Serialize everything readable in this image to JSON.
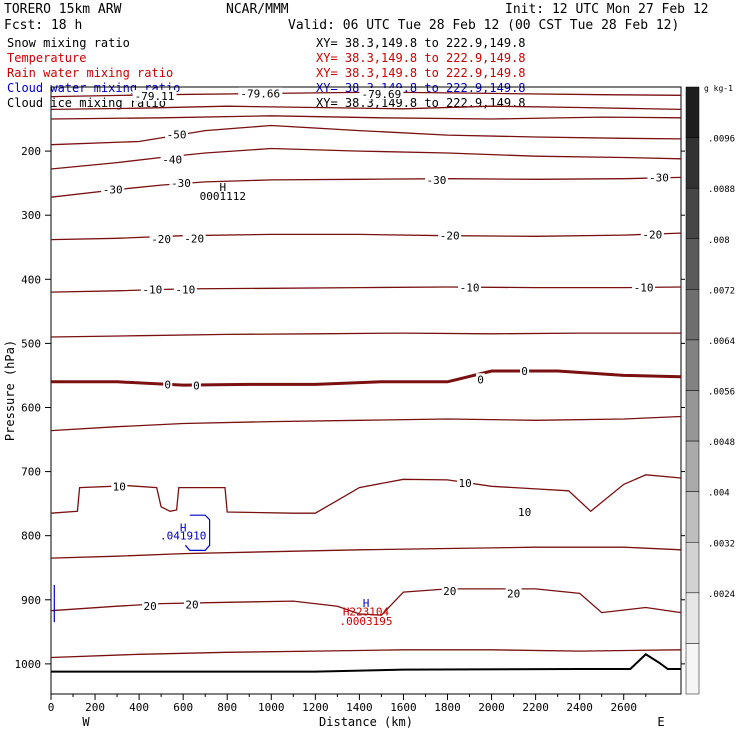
{
  "header": {
    "model": "TORERO  15km ARW",
    "center": "NCAR/MMM",
    "init": "Init: 12 UTC Mon 27 Feb 12",
    "fcst": "Fcst:   18 h",
    "valid": "Valid: 06 UTC Tue 28 Feb 12 (00 CST Tue 28 Feb 12)",
    "fields": [
      {
        "label": "Snow mixing ratio",
        "xy": "XY=  38.3,149.8 to 222.9,149.8",
        "color": "#000000"
      },
      {
        "label": "Temperature",
        "xy": "XY=  38.3,149.8 to 222.9,149.8",
        "color": "#cc0000"
      },
      {
        "label": "Rain water mixing ratio",
        "xy": "XY=  38.3,149.8 to 222.9,149.8",
        "color": "#cc0000"
      },
      {
        "label": "Cloud water mixing ratio",
        "xy": "XY=  38.3,149.8 to 222.9,149.8",
        "color": "#0000cc"
      },
      {
        "label": "Cloud ice mixing ratio",
        "xy": "XY=  38.3,149.8 to 222.9,149.8",
        "color": "#000000"
      }
    ]
  },
  "chart_data": {
    "type": "contour cross-section",
    "xlabel": "Distance (km)",
    "ylabel": "Pressure (hPa)",
    "xlim": [
      0,
      2860
    ],
    "ylim": [
      100,
      1047
    ],
    "x_ticks": [
      0,
      200,
      400,
      600,
      800,
      1000,
      1200,
      1400,
      1600,
      1800,
      2000,
      2200,
      2400,
      2600
    ],
    "y_ticks": [
      200,
      300,
      400,
      500,
      600,
      700,
      800,
      900,
      1000
    ],
    "x_end_labels": {
      "left": "W",
      "right": "E"
    },
    "temperature_contours": [
      {
        "level": -70,
        "points": [
          [
            0,
            115
          ],
          [
            500,
            112
          ],
          [
            1000,
            110
          ],
          [
            1500,
            108
          ],
          [
            2000,
            110
          ],
          [
            2500,
            112
          ],
          [
            2860,
            113
          ]
        ]
      },
      {
        "level": -60,
        "points": [
          [
            0,
            135
          ],
          [
            400,
            133
          ],
          [
            800,
            130
          ],
          [
            1200,
            132
          ],
          [
            1600,
            134
          ],
          [
            2000,
            130
          ],
          [
            2400,
            132
          ],
          [
            2860,
            135
          ]
        ]
      },
      {
        "level": -55,
        "points": [
          [
            0,
            150
          ],
          [
            500,
            148
          ],
          [
            1000,
            145
          ],
          [
            1500,
            148
          ],
          [
            2000,
            150
          ],
          [
            2500,
            147
          ],
          [
            2860,
            148
          ]
        ]
      },
      {
        "level": -50,
        "points": [
          [
            0,
            190
          ],
          [
            400,
            185
          ],
          [
            700,
            168
          ],
          [
            1000,
            160
          ],
          [
            1400,
            168
          ],
          [
            1800,
            175
          ],
          [
            2200,
            178
          ],
          [
            2600,
            180
          ],
          [
            2860,
            181
          ]
        ]
      },
      {
        "level": -40,
        "points": [
          [
            0,
            228
          ],
          [
            300,
            218
          ],
          [
            500,
            210
          ],
          [
            700,
            203
          ],
          [
            1000,
            196
          ],
          [
            1400,
            200
          ],
          [
            1800,
            203
          ],
          [
            2200,
            208
          ],
          [
            2600,
            210
          ],
          [
            2860,
            212
          ]
        ]
      },
      {
        "level": -30,
        "points": [
          [
            0,
            272
          ],
          [
            300,
            260
          ],
          [
            500,
            253
          ],
          [
            700,
            248
          ],
          [
            1000,
            245
          ],
          [
            1400,
            244
          ],
          [
            1800,
            243
          ],
          [
            2200,
            244
          ],
          [
            2600,
            243
          ],
          [
            2860,
            241
          ]
        ]
      },
      {
        "level": -20,
        "points": [
          [
            0,
            338
          ],
          [
            300,
            336
          ],
          [
            600,
            332
          ],
          [
            1000,
            330
          ],
          [
            1400,
            330
          ],
          [
            1800,
            332
          ],
          [
            2200,
            333
          ],
          [
            2600,
            331
          ],
          [
            2860,
            328
          ]
        ]
      },
      {
        "level": -10,
        "points": [
          [
            0,
            420
          ],
          [
            300,
            418
          ],
          [
            600,
            415
          ],
          [
            1000,
            414
          ],
          [
            1400,
            413
          ],
          [
            1800,
            412
          ],
          [
            2200,
            413
          ],
          [
            2600,
            413
          ],
          [
            2860,
            412
          ]
        ]
      },
      {
        "level": -5,
        "points": [
          [
            0,
            490
          ],
          [
            400,
            488
          ],
          [
            800,
            486
          ],
          [
            1200,
            485
          ],
          [
            1600,
            484
          ],
          [
            2000,
            485
          ],
          [
            2400,
            484
          ],
          [
            2860,
            484
          ]
        ]
      },
      {
        "level": 0,
        "points": [
          [
            0,
            560
          ],
          [
            300,
            560
          ],
          [
            600,
            565
          ],
          [
            900,
            564
          ],
          [
            1200,
            564
          ],
          [
            1500,
            560
          ],
          [
            1800,
            560
          ],
          [
            2000,
            543
          ],
          [
            2300,
            543
          ],
          [
            2600,
            550
          ],
          [
            2860,
            552
          ]
        ],
        "bold": true
      },
      {
        "level": 5,
        "points": [
          [
            0,
            636
          ],
          [
            300,
            630
          ],
          [
            600,
            625
          ],
          [
            1000,
            622
          ],
          [
            1400,
            620
          ],
          [
            1800,
            618
          ],
          [
            2200,
            620
          ],
          [
            2600,
            618
          ],
          [
            2860,
            614
          ]
        ]
      },
      {
        "level": 10,
        "points": [
          [
            0,
            765
          ],
          [
            120,
            762
          ],
          [
            130,
            725
          ],
          [
            350,
            722
          ],
          [
            480,
            725
          ],
          [
            500,
            755
          ],
          [
            540,
            762
          ],
          [
            570,
            760
          ],
          [
            580,
            725
          ],
          [
            790,
            725
          ],
          [
            800,
            763
          ],
          [
            1100,
            765
          ],
          [
            1200,
            765
          ],
          [
            1300,
            745
          ],
          [
            1400,
            725
          ],
          [
            1600,
            712
          ],
          [
            1800,
            713
          ],
          [
            2000,
            723
          ],
          [
            2200,
            727
          ],
          [
            2350,
            730
          ],
          [
            2450,
            762
          ],
          [
            2600,
            720
          ],
          [
            2700,
            705
          ],
          [
            2860,
            710
          ]
        ]
      },
      {
        "level": 15,
        "points": [
          [
            0,
            835
          ],
          [
            300,
            832
          ],
          [
            600,
            828
          ],
          [
            1000,
            825
          ],
          [
            1400,
            822
          ],
          [
            1800,
            820
          ],
          [
            2200,
            818
          ],
          [
            2600,
            818
          ],
          [
            2860,
            822
          ]
        ]
      },
      {
        "level": 20,
        "points": [
          [
            0,
            917
          ],
          [
            300,
            910
          ],
          [
            500,
            906
          ],
          [
            800,
            904
          ],
          [
            1100,
            902
          ],
          [
            1300,
            910
          ],
          [
            1400,
            922
          ],
          [
            1500,
            924
          ],
          [
            1600,
            888
          ],
          [
            1800,
            883
          ],
          [
            2000,
            883
          ],
          [
            2200,
            883
          ],
          [
            2400,
            890
          ],
          [
            2500,
            920
          ],
          [
            2700,
            912
          ],
          [
            2860,
            920
          ]
        ]
      },
      {
        "level": 25,
        "points": [
          [
            0,
            990
          ],
          [
            400,
            985
          ],
          [
            800,
            982
          ],
          [
            1200,
            980
          ],
          [
            1600,
            978
          ],
          [
            2000,
            978
          ],
          [
            2400,
            980
          ],
          [
            2860,
            978
          ]
        ]
      }
    ],
    "contour_labels": [
      {
        "text": "-79.11",
        "x": 470,
        "y": 114
      },
      {
        "text": "-79.66",
        "x": 950,
        "y": 110
      },
      {
        "text": "-79.69",
        "x": 1500,
        "y": 111
      },
      {
        "text": "-50",
        "x": 570,
        "y": 174
      },
      {
        "text": "-40",
        "x": 550,
        "y": 213
      },
      {
        "text": "-30",
        "x": 280,
        "y": 260
      },
      {
        "text": "-30",
        "x": 590,
        "y": 250
      },
      {
        "text": "-30",
        "x": 1750,
        "y": 245
      },
      {
        "text": "-30",
        "x": 2760,
        "y": 241
      },
      {
        "text": "-20",
        "x": 500,
        "y": 337
      },
      {
        "text": "-20",
        "x": 650,
        "y": 336
      },
      {
        "text": "-20",
        "x": 1810,
        "y": 332
      },
      {
        "text": "-20",
        "x": 2730,
        "y": 330
      },
      {
        "text": "-10",
        "x": 460,
        "y": 416
      },
      {
        "text": "-10",
        "x": 610,
        "y": 416
      },
      {
        "text": "-10",
        "x": 1900,
        "y": 413
      },
      {
        "text": "-10",
        "x": 2690,
        "y": 413
      },
      {
        "text": "0",
        "x": 530,
        "y": 564
      },
      {
        "text": "0",
        "x": 660,
        "y": 566
      },
      {
        "text": "0",
        "x": 1950,
        "y": 556
      },
      {
        "text": "0",
        "x": 2150,
        "y": 543
      },
      {
        "text": "10",
        "x": 310,
        "y": 723
      },
      {
        "text": "10",
        "x": 1880,
        "y": 718
      },
      {
        "text": "10",
        "x": 2150,
        "y": 763
      },
      {
        "text": "20",
        "x": 450,
        "y": 910
      },
      {
        "text": "20",
        "x": 640,
        "y": 907
      },
      {
        "text": "20",
        "x": 1810,
        "y": 886
      },
      {
        "text": "20",
        "x": 2100,
        "y": 890
      }
    ],
    "max_labels": [
      {
        "text": "H",
        "x": 780,
        "y": 1.0,
        "p": 256,
        "color": "#000000"
      },
      {
        "text": "0001112",
        "x": 780,
        "p": 270,
        "color": "#000000"
      },
      {
        "text": "H",
        "x": 600,
        "p": 787,
        "color": "#0000cc"
      },
      {
        "text": ".041910",
        "x": 600,
        "p": 800,
        "color": "#0000cc"
      },
      {
        "text": "H",
        "x": 1430,
        "p": 905,
        "color": "#0000cc"
      },
      {
        "text": "H223104",
        "x": 1430,
        "p": 918,
        "color": "#cc0000"
      },
      {
        "text": ".0003195",
        "x": 1430,
        "p": 933,
        "color": "#cc0000"
      }
    ],
    "cloud_water_contours": [
      {
        "level": 0.01,
        "points": [
          [
            630,
            768
          ],
          [
            700,
            768
          ],
          [
            720,
            775
          ],
          [
            720,
            815
          ],
          [
            700,
            823
          ],
          [
            630,
            823
          ],
          [
            610,
            815
          ]
        ]
      },
      {
        "level": 0.01,
        "points": [
          [
            15,
            877
          ],
          [
            15,
            935
          ]
        ]
      }
    ],
    "terrain": [
      [
        0,
        1012
      ],
      [
        1200,
        1012
      ],
      [
        1600,
        1009
      ],
      [
        2400,
        1008
      ],
      [
        2630,
        1008
      ],
      [
        2700,
        985
      ],
      [
        2760,
        998
      ],
      [
        2800,
        1008
      ],
      [
        2860,
        1008
      ]
    ],
    "colorbar": {
      "unit": "g kg-1",
      "ticks": [
        ".0096",
        ".0088",
        ".008",
        ".0072",
        ".0064",
        ".0056",
        ".0048",
        ".004",
        ".0032",
        ".0024"
      ],
      "colors": [
        "#1e1e1e",
        "#323232",
        "#464646",
        "#5a5a5a",
        "#6e6e6e",
        "#828282",
        "#969696",
        "#aaaaaa",
        "#bebebe",
        "#d2d2d2",
        "#e6e6e6",
        "#f5f5f5"
      ]
    }
  }
}
